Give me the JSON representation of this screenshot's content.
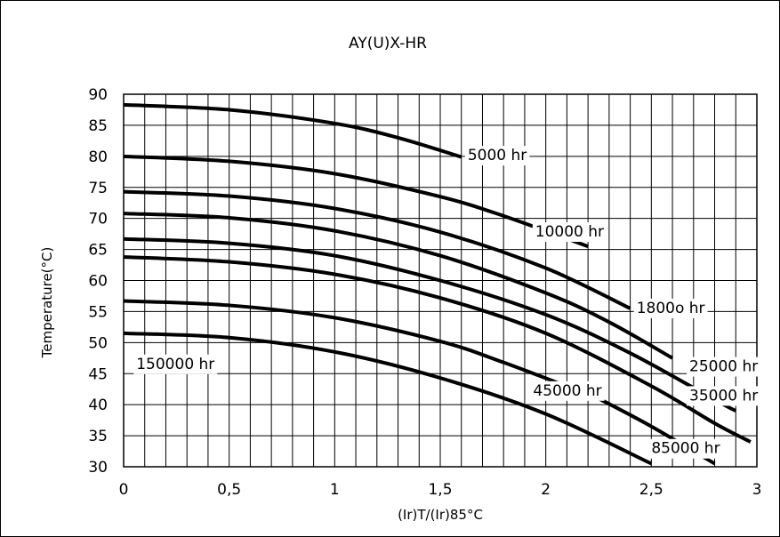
{
  "chart_data": {
    "type": "line",
    "title": "AY(U)X-HR",
    "xlabel": "(Ir)T/(Ir)85°C",
    "ylabel": "Temperature(°C)",
    "xlim": [
      0,
      3
    ],
    "ylim": [
      30,
      90
    ],
    "x_ticks": [
      "0",
      "0,5",
      "1",
      "1,5",
      "2",
      "2,5",
      "3"
    ],
    "y_ticks": [
      "30",
      "35",
      "40",
      "45",
      "50",
      "55",
      "60",
      "65",
      "70",
      "75",
      "80",
      "85",
      "90"
    ],
    "grid": true,
    "series": [
      {
        "name": "5000 hr",
        "label_text": "5000 hr",
        "points": [
          [
            0,
            88.3
          ],
          [
            0.5,
            87.5
          ],
          [
            1,
            85.3
          ],
          [
            1.3,
            83
          ],
          [
            1.6,
            79.9
          ]
        ]
      },
      {
        "name": "10000 hr",
        "label_text": "10000 hr",
        "points": [
          [
            0,
            80
          ],
          [
            0.5,
            79.2
          ],
          [
            1,
            77.2
          ],
          [
            1.5,
            73.5
          ],
          [
            1.8,
            70.4
          ],
          [
            2.2,
            65.5
          ]
        ]
      },
      {
        "name": "1800o hr",
        "label_text": "1800o hr",
        "points": [
          [
            0,
            74.3
          ],
          [
            0.5,
            73.6
          ],
          [
            1,
            71.6
          ],
          [
            1.5,
            67.8
          ],
          [
            2,
            62
          ],
          [
            2.4,
            55.5
          ]
        ]
      },
      {
        "name": "25000 hr",
        "label_text": "25000 hr",
        "points": [
          [
            0,
            70.8
          ],
          [
            0.5,
            70.1
          ],
          [
            1,
            68
          ],
          [
            1.5,
            64
          ],
          [
            2,
            58
          ],
          [
            2.3,
            53.3
          ],
          [
            2.6,
            47.5
          ]
        ]
      },
      {
        "name": "35000 hr",
        "label_text": "35000 hr",
        "points": [
          [
            0,
            66.7
          ],
          [
            0.5,
            66
          ],
          [
            1,
            64
          ],
          [
            1.5,
            60
          ],
          [
            2,
            54.5
          ],
          [
            2.4,
            48.3
          ],
          [
            2.8,
            40.8
          ],
          [
            2.9,
            39
          ]
        ]
      },
      {
        "name": "",
        "label_text": "",
        "points": [
          [
            0,
            63.8
          ],
          [
            0.5,
            63
          ],
          [
            1,
            61
          ],
          [
            1.5,
            57.2
          ],
          [
            2,
            51.5
          ],
          [
            2.5,
            43
          ],
          [
            2.8,
            37
          ],
          [
            2.97,
            34
          ]
        ]
      },
      {
        "name": "45000 hr",
        "label_text": "45000 hr",
        "points": [
          [
            0,
            56.7
          ],
          [
            0.5,
            56
          ],
          [
            1,
            54
          ],
          [
            1.5,
            50.2
          ],
          [
            1.8,
            46.8
          ],
          [
            2.25,
            41
          ]
        ]
      },
      {
        "name": "85000 hr",
        "label_text": "85000 hr",
        "points": [
          [
            2.25,
            41
          ],
          [
            2.5,
            36.5
          ],
          [
            2.8,
            30.5
          ]
        ]
      },
      {
        "name": "150000 hr",
        "label_text": "150000 hr",
        "points": [
          [
            0,
            51.5
          ],
          [
            0.5,
            50.8
          ],
          [
            1,
            48.5
          ],
          [
            1.5,
            44.3
          ],
          [
            2,
            38.5
          ],
          [
            2.5,
            30.5
          ]
        ]
      }
    ],
    "labels": [
      {
        "text": "5000 hr",
        "x": 1.63,
        "y": 80.1
      },
      {
        "text": "10000 hr",
        "x": 1.95,
        "y": 67.8
      },
      {
        "text": "1800o hr",
        "x": 2.43,
        "y": 55.5
      },
      {
        "text": "25000 hr",
        "x": 2.68,
        "y": 46.1
      },
      {
        "text": "35000 hr",
        "x": 2.68,
        "y": 41.4
      },
      {
        "text": "45000 hr",
        "x": 1.94,
        "y": 42.2
      },
      {
        "text": "85000 hr",
        "x": 2.5,
        "y": 32.9
      },
      {
        "text": "150000 hr",
        "x": 0.06,
        "y": 46.5
      }
    ]
  }
}
